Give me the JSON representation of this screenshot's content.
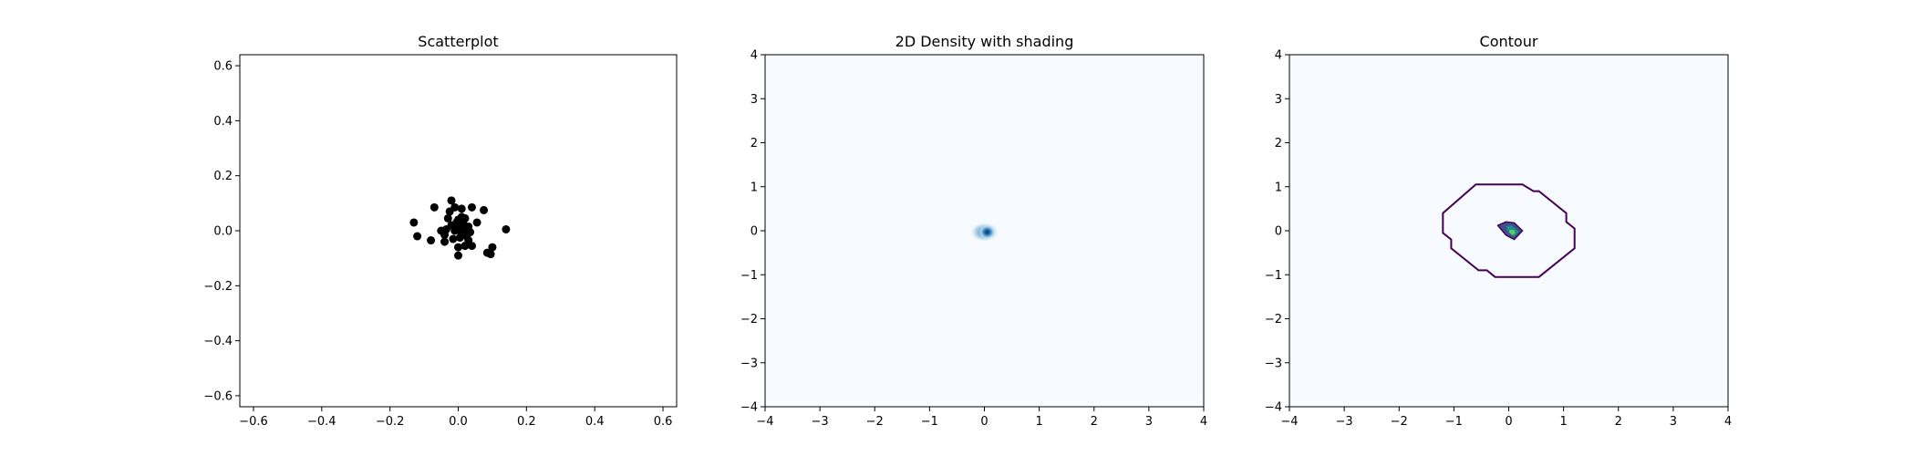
{
  "chart_data": [
    {
      "type": "scatter",
      "title": "Scatterplot",
      "xlim": [
        -0.64,
        0.64
      ],
      "ylim": [
        -0.64,
        0.64
      ],
      "xticks": [
        -0.6,
        -0.4,
        -0.2,
        0.0,
        0.2,
        0.4,
        0.6
      ],
      "yticks": [
        -0.6,
        -0.4,
        -0.2,
        0.0,
        0.2,
        0.4,
        0.6
      ],
      "xtick_labels": [
        "−0.6",
        "−0.4",
        "−0.2",
        "0.0",
        "0.2",
        "0.4",
        "0.6"
      ],
      "ytick_labels": [
        "−0.6",
        "−0.4",
        "−0.2",
        "0.0",
        "0.2",
        "0.4",
        "0.6"
      ],
      "marker_color": "#000000",
      "points": [
        [
          -0.02,
          0.11
        ],
        [
          -0.07,
          0.085
        ],
        [
          -0.01,
          0.085
        ],
        [
          0.01,
          0.08
        ],
        [
          0.04,
          0.085
        ],
        [
          0.075,
          0.075
        ],
        [
          -0.13,
          0.03
        ],
        [
          -0.03,
          0.045
        ],
        [
          0.0,
          0.04
        ],
        [
          0.02,
          0.045
        ],
        [
          0.055,
          0.03
        ],
        [
          0.14,
          0.005
        ],
        [
          -0.12,
          -0.02
        ],
        [
          -0.08,
          -0.035
        ],
        [
          -0.04,
          -0.015
        ],
        [
          -0.02,
          0.02
        ],
        [
          -0.01,
          0.0
        ],
        [
          0.0,
          0.015
        ],
        [
          0.01,
          -0.01
        ],
        [
          0.015,
          0.025
        ],
        [
          0.02,
          0.005
        ],
        [
          0.025,
          -0.02
        ],
        [
          -0.035,
          0.005
        ],
        [
          0.03,
          0.015
        ],
        [
          -0.015,
          -0.03
        ],
        [
          0.005,
          -0.025
        ],
        [
          0.03,
          -0.035
        ],
        [
          -0.04,
          -0.04
        ],
        [
          0.02,
          -0.055
        ],
        [
          0.04,
          -0.055
        ],
        [
          0.0,
          -0.06
        ],
        [
          0.1,
          -0.06
        ],
        [
          0.085,
          -0.08
        ],
        [
          0.095,
          -0.085
        ],
        [
          0.0,
          -0.09
        ],
        [
          -0.005,
          0.03
        ],
        [
          0.01,
          0.05
        ],
        [
          -0.025,
          0.07
        ],
        [
          0.035,
          -0.005
        ],
        [
          -0.05,
          0.0
        ]
      ]
    },
    {
      "type": "heatmap",
      "title": "2D Density with shading",
      "xlim": [
        -4,
        4
      ],
      "ylim": [
        -4,
        4
      ],
      "xticks": [
        -4,
        -3,
        -2,
        -1,
        0,
        1,
        2,
        3,
        4
      ],
      "yticks": [
        -4,
        -3,
        -2,
        -1,
        0,
        1,
        2,
        3,
        4
      ],
      "xtick_labels": [
        "−4",
        "−3",
        "−2",
        "−1",
        "0",
        "1",
        "2",
        "3",
        "4"
      ],
      "ytick_labels": [
        "−4",
        "−3",
        "−2",
        "−1",
        "0",
        "1",
        "2",
        "3",
        "4"
      ],
      "colormap": "Blues",
      "background_color": "#f7fbff",
      "density_peak": [
        0.05,
        -0.03
      ]
    },
    {
      "type": "contour",
      "title": "Contour",
      "xlim": [
        -4,
        4
      ],
      "ylim": [
        -4,
        4
      ],
      "xticks": [
        -4,
        -3,
        -2,
        -1,
        0,
        1,
        2,
        3,
        4
      ],
      "yticks": [
        -4,
        -3,
        -2,
        -1,
        0,
        1,
        2,
        3,
        4
      ],
      "xtick_labels": [
        "−4",
        "−3",
        "−2",
        "−1",
        "0",
        "1",
        "2",
        "3",
        "4"
      ],
      "ytick_labels": [
        "−4",
        "−3",
        "−2",
        "−1",
        "0",
        "1",
        "2",
        "3",
        "4"
      ],
      "background_color": "#f7fbff",
      "outer_contour": [
        [
          -0.6,
          1.05
        ],
        [
          0.25,
          1.05
        ],
        [
          0.45,
          0.9
        ],
        [
          0.55,
          0.9
        ],
        [
          1.05,
          0.4
        ],
        [
          1.05,
          0.2
        ],
        [
          1.2,
          0.05
        ],
        [
          1.2,
          -0.4
        ],
        [
          0.55,
          -1.05
        ],
        [
          -0.25,
          -1.05
        ],
        [
          -0.4,
          -0.9
        ],
        [
          -0.55,
          -0.9
        ],
        [
          -1.05,
          -0.4
        ],
        [
          -1.05,
          -0.2
        ],
        [
          -1.2,
          -0.05
        ],
        [
          -1.2,
          0.4
        ]
      ],
      "outer_color": "#440154",
      "inner_levels": [
        {
          "color": "#3b528b",
          "points": [
            [
              -0.2,
              0.12
            ],
            [
              -0.05,
              0.2
            ],
            [
              0.1,
              0.18
            ],
            [
              0.25,
              0.0
            ],
            [
              0.1,
              -0.2
            ],
            [
              -0.05,
              -0.1
            ]
          ]
        },
        {
          "color": "#21918c",
          "points": [
            [
              -0.05,
              0.1
            ],
            [
              0.05,
              0.12
            ],
            [
              0.18,
              -0.02
            ],
            [
              0.1,
              -0.13
            ],
            [
              0.0,
              -0.05
            ]
          ]
        },
        {
          "color": "#5ec962",
          "points": [
            [
              0.02,
              0.02
            ],
            [
              0.1,
              0.02
            ],
            [
              0.12,
              -0.06
            ],
            [
              0.06,
              -0.1
            ],
            [
              0.01,
              -0.04
            ]
          ]
        }
      ]
    }
  ]
}
